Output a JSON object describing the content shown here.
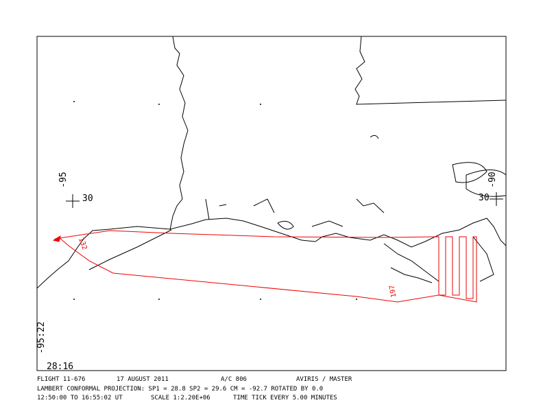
{
  "map": {
    "grid_labels": {
      "left_lon": "-95",
      "left_lat": "30",
      "right_lon": "-90",
      "right_lat": "30",
      "bottom_lon": "-95:22",
      "bottom_lat": "28:16"
    },
    "track_labels": [
      "132",
      "197"
    ],
    "footer": {
      "flight": "FLIGHT 11-676",
      "date": "17 AUGUST 2011",
      "aircraft": "A/C 806",
      "instruments": "AVIRIS / MASTER",
      "projection": "LAMBERT CONFORMAL PROJECTION:  SP1 =   28.8 SP2 =   29.6 CM =  -92.7 ROTATED BY    0.0",
      "time_range": "12:50:00 TO 16:55:02 UT",
      "scale": "SCALE 1:2.20E+06",
      "time_tick": "TIME TICK EVERY   5.00 MINUTES"
    }
  }
}
